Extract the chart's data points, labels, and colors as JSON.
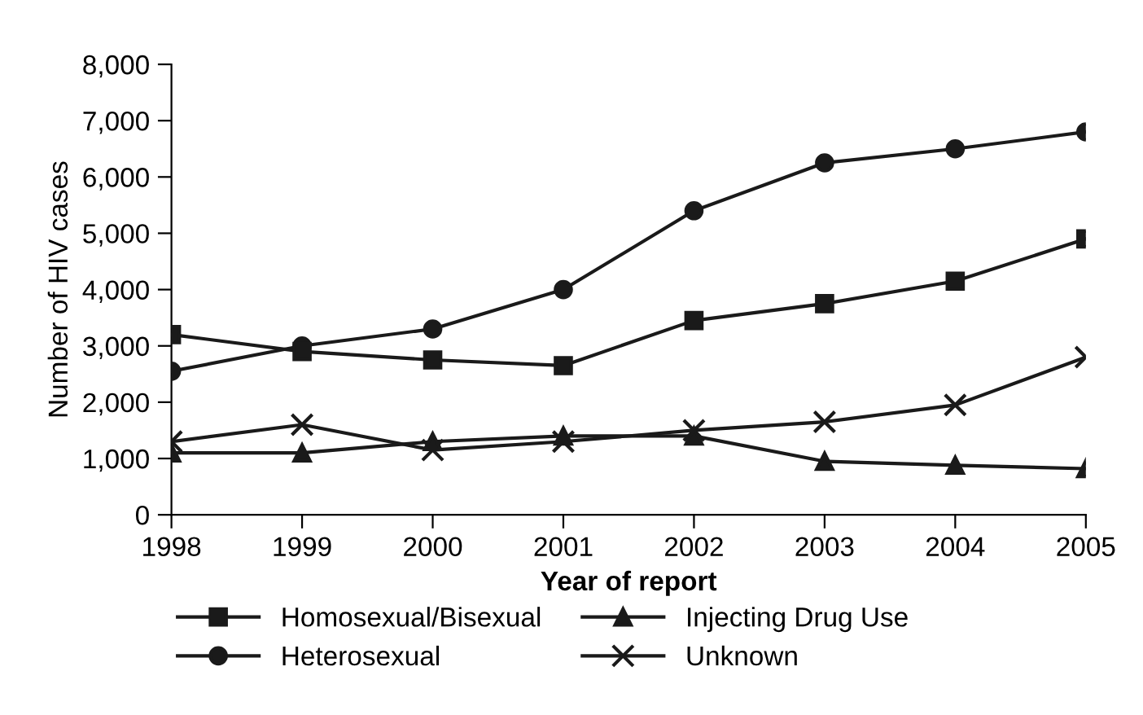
{
  "chart_data": {
    "type": "line",
    "xlabel": "Year of report",
    "ylabel": "Number of HIV cases",
    "x": [
      1998,
      1999,
      2000,
      2001,
      2002,
      2003,
      2004,
      2005
    ],
    "xlim": [
      1998,
      2005
    ],
    "xticks": [
      1998,
      1999,
      2000,
      2001,
      2002,
      2003,
      2004,
      2005
    ],
    "ylim": [
      0,
      8000
    ],
    "yticks": [
      {
        "value": 0,
        "label": "0"
      },
      {
        "value": 1000,
        "label": "1,000"
      },
      {
        "value": 2000,
        "label": "2,000"
      },
      {
        "value": 3000,
        "label": "3,000"
      },
      {
        "value": 4000,
        "label": "4,000"
      },
      {
        "value": 5000,
        "label": "5,000"
      },
      {
        "value": 6000,
        "label": "6,000"
      },
      {
        "value": 7000,
        "label": "7,000"
      },
      {
        "value": 8000,
        "label": "8,000"
      }
    ],
    "legend": "bottom",
    "grid": false,
    "series": [
      {
        "name": "Homosexual/Bisexual",
        "color": "#1a1a1a",
        "marker": "square",
        "values": [
          3200,
          2900,
          2750,
          2650,
          3450,
          3750,
          4150,
          4900
        ]
      },
      {
        "name": "Heterosexual",
        "color": "#1a1a1a",
        "marker": "circle",
        "values": [
          2550,
          3000,
          3300,
          4000,
          5400,
          6250,
          6500,
          6800
        ]
      },
      {
        "name": "Injecting Drug Use",
        "color": "#1a1a1a",
        "marker": "triangle",
        "values": [
          1100,
          1100,
          1300,
          1400,
          1400,
          950,
          880,
          820
        ]
      },
      {
        "name": "Unknown",
        "color": "#1a1a1a",
        "marker": "cross",
        "values": [
          1300,
          1600,
          1150,
          1300,
          1500,
          1650,
          1950,
          2800
        ]
      }
    ]
  }
}
